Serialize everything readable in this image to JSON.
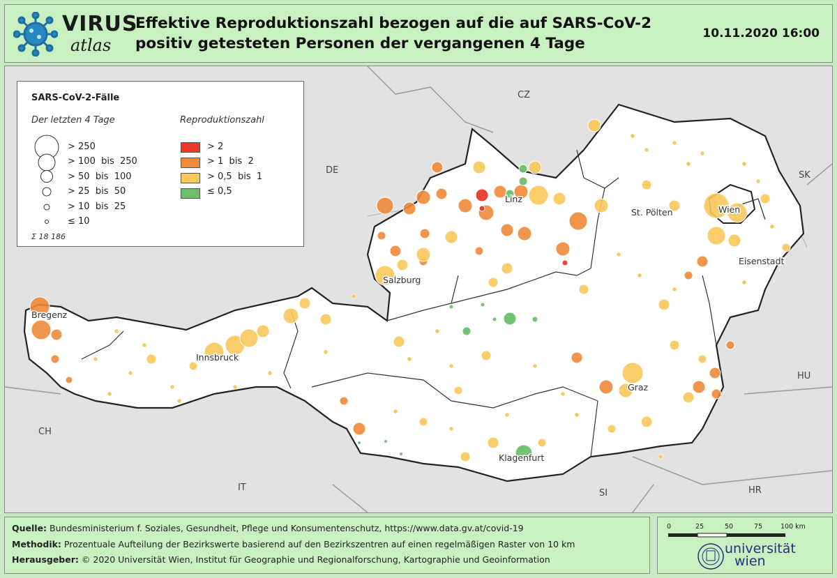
{
  "header": {
    "logo_word1": "VIRUS",
    "logo_word2": "atlas",
    "title_line1": "Effektive Reproduktionszahl bezogen auf die auf SARS-CoV-2",
    "title_line2": "positiv getesteten Personen der vergangenen 4 Tage",
    "timestamp": "10.11.2020 16:00"
  },
  "legend": {
    "title": "SARS-CoV-2-Fälle",
    "size_heading": "Der letzten 4 Tage",
    "size_classes": [
      "> 250",
      "> 100  bis  250",
      "> 50  bis  100",
      "> 25  bis  50",
      "> 10  bis  25",
      "≤ 10"
    ],
    "color_heading": "Reproduktionszahl",
    "color_classes": [
      {
        "label": "> 2",
        "color": "#e8392a"
      },
      {
        "label": "> 1  bis  2",
        "color": "#f08a3a"
      },
      {
        "label": "> 0,5  bis  1",
        "color": "#f8c85a"
      },
      {
        "label": "≤ 0,5",
        "color": "#6cc06c"
      }
    ],
    "total": "Σ  18 186"
  },
  "map": {
    "countries": [
      "CZ",
      "DE",
      "SK",
      "HU",
      "CH",
      "IT",
      "SI",
      "HR"
    ],
    "cities": [
      "Linz",
      "Wien",
      "St. Pölten",
      "Eisenstadt",
      "Salzburg",
      "Bregenz",
      "Innsbruck",
      "Graz",
      "Klagenfurt"
    ]
  },
  "footer": {
    "source_label": "Quelle:",
    "source_text": "Bundesministerium f. Soziales, Gesundheit, Pflege und Konsumentenschutz, https://www.data.gv.at/covid-19",
    "method_label": "Methodik:",
    "method_text": "Prozentuale Aufteilung der Bezirkswerte basierend auf den Bezirkszentren auf einen regelmäßigen Raster von 10 km",
    "publisher_label": "Herausgeber:",
    "publisher_text": "© 2020 Universität Wien, Institut für Geographie und Regionalforschung, Kartographie und Geoinformation"
  },
  "scale": {
    "ticks": [
      "0",
      "25",
      "50",
      "75",
      "100 km"
    ],
    "university_line1": "universität",
    "university_line2": "wien"
  }
}
